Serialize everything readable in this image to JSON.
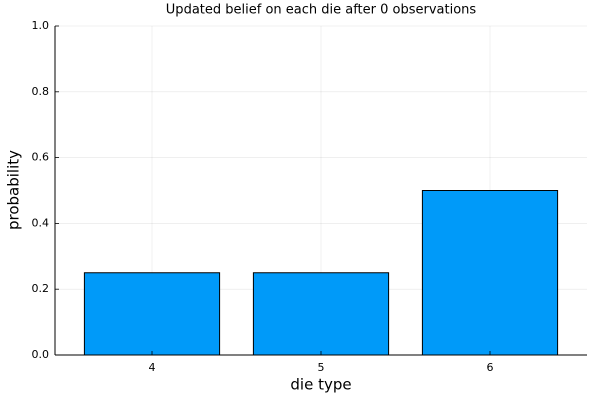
{
  "chart_data": {
    "type": "bar",
    "title": "Updated belief on each die after 0 observations",
    "x_label": "die type",
    "y_label": "probability",
    "categories": [
      "4",
      "5",
      "6"
    ],
    "values": [
      0.25,
      0.25,
      0.5
    ],
    "color": "#009af9",
    "ylim": [
      0,
      1
    ],
    "yticks": [
      {
        "value": 0,
        "label": "0.0"
      },
      0.2,
      0.4,
      0.6,
      0.8,
      {
        "value": 1,
        "label": "1.0"
      }
    ],
    "grid": true
  }
}
